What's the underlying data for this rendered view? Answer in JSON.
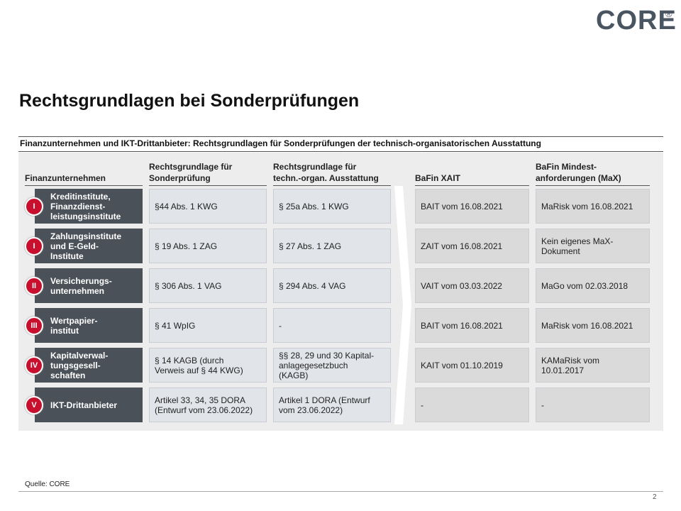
{
  "header": {
    "logo": "CORE",
    "logo_mark": "®"
  },
  "title": "Rechtsgrundlagen bei Sonderprüfungen",
  "table": {
    "caption": "Finanzunternehmen und IKT-Drittanbieter: Rechtsgrundlagen für Sonderprüfungen der technisch-organisatorischen Ausstattung",
    "columns": [
      "Finanzunternehmen",
      "Rechtsgrundlage für\nSonderprüfung",
      "Rechtsgrundlage für\ntechn.-organ. Ausstattung",
      "BaFin XAIT",
      "BaFin Mindest-\nanforderungen (MaX)"
    ],
    "rows": [
      {
        "badge": "I",
        "cells": [
          "Kreditinstitute,\nFinanzdienst-\nleistungsinstitute",
          "§44 Abs. 1 KWG",
          "§ 25a Abs. 1 KWG",
          "BAIT vom 16.08.2021",
          "MaRisk vom 16.08.2021"
        ]
      },
      {
        "badge": "I",
        "cells": [
          "Zahlungsinstitute\nund E-Geld-\nInstitute",
          "§ 19 Abs. 1 ZAG",
          "§ 27 Abs. 1 ZAG",
          "ZAIT vom 16.08.2021",
          "Kein eigenes MaX-\nDokument"
        ]
      },
      {
        "badge": "II",
        "cells": [
          "Versicherungs-\nunternehmen",
          "§ 306 Abs. 1 VAG",
          "§ 294 Abs. 4 VAG",
          "VAIT vom 03.03.2022",
          "MaGo vom 02.03.2018"
        ]
      },
      {
        "badge": "III",
        "cells": [
          "Wertpapier-\ninstitut",
          "§ 41 WpIG",
          "-",
          "BAIT vom 16.08.2021",
          "MaRisk vom 16.08.2021"
        ]
      },
      {
        "badge": "IV",
        "cells": [
          "Kapitalverwal-\ntungsgesell-\nschaften",
          "§ 14 KAGB (durch\nVerweis auf § 44 KWG)",
          "§§ 28, 29 und 30 Kapital-\nanlagegesetzbuch\n(KAGB)",
          "KAIT vom 01.10.2019",
          "KAMaRisk vom\n10.01.2017"
        ]
      },
      {
        "badge": "V",
        "cells": [
          "IKT-Drittanbieter",
          "Artikel 33, 34, 35 DORA\n(Entwurf vom 23.06.2022)",
          "Artikel 1 DORA (Entwurf\nvom 23.06.2022)",
          "-",
          "-"
        ]
      }
    ]
  },
  "footer": {
    "source": "Quelle: CORE",
    "page": "2"
  }
}
